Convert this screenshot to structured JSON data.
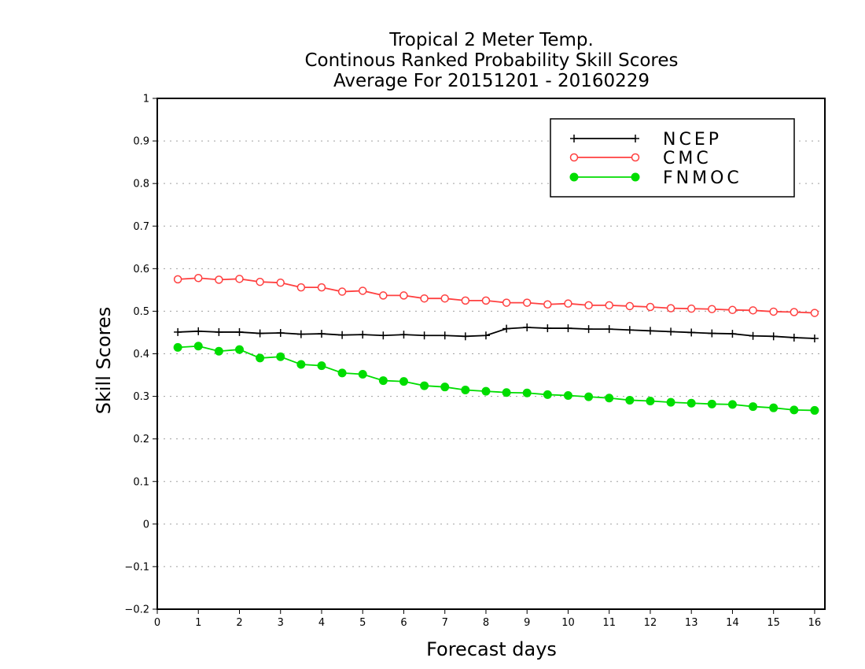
{
  "chart_data": {
    "type": "line",
    "title": [
      "Tropical 2 Meter Temp.",
      "Continous Ranked Probability Skill Scores",
      "Average For 20151201 - 20160229"
    ],
    "xlabel": "Forecast days",
    "ylabel": "Skill Scores",
    "xlim": [
      0,
      16.25
    ],
    "ylim": [
      -0.2,
      1
    ],
    "x_ticks": [
      0,
      1,
      2,
      3,
      4,
      5,
      6,
      7,
      8,
      9,
      10,
      11,
      12,
      13,
      14,
      15,
      16
    ],
    "y_ticks": [
      -0.2,
      -0.1,
      0,
      0.1,
      0.2,
      0.3,
      0.4,
      0.5,
      0.6,
      0.7,
      0.8,
      0.9,
      1
    ],
    "y_tick_labels": [
      "−0.2",
      "−0.1",
      "0",
      "0.1",
      "0.2",
      "0.3",
      "0.4",
      "0.5",
      "0.6",
      "0.7",
      "0.8",
      "0.9",
      "1"
    ],
    "grid": true,
    "legend_position": "top-right",
    "x": [
      0.5,
      1.0,
      1.5,
      2.0,
      2.5,
      3.0,
      3.5,
      4.0,
      4.5,
      5.0,
      5.5,
      6.0,
      6.5,
      7.0,
      7.5,
      8.0,
      8.5,
      9.0,
      9.5,
      10.0,
      10.5,
      11.0,
      11.5,
      12.0,
      12.5,
      13.0,
      13.5,
      14.0,
      14.5,
      15.0,
      15.5,
      16.0
    ],
    "series": [
      {
        "name": "NCEP",
        "color": "#000000",
        "marker": "plus",
        "values": [
          0.451,
          0.453,
          0.451,
          0.451,
          0.448,
          0.449,
          0.446,
          0.447,
          0.444,
          0.445,
          0.443,
          0.445,
          0.443,
          0.443,
          0.441,
          0.443,
          0.459,
          0.462,
          0.46,
          0.46,
          0.458,
          0.458,
          0.456,
          0.454,
          0.452,
          0.45,
          0.448,
          0.447,
          0.442,
          0.441,
          0.438,
          0.436
        ]
      },
      {
        "name": "CMC",
        "color": "#ff4040",
        "marker": "open-circle",
        "values": [
          0.575,
          0.578,
          0.574,
          0.576,
          0.569,
          0.567,
          0.556,
          0.556,
          0.546,
          0.548,
          0.537,
          0.537,
          0.53,
          0.53,
          0.525,
          0.525,
          0.52,
          0.52,
          0.516,
          0.518,
          0.514,
          0.514,
          0.512,
          0.51,
          0.507,
          0.506,
          0.505,
          0.503,
          0.502,
          0.499,
          0.498,
          0.496
        ]
      },
      {
        "name": "FNMOC",
        "color": "#00dd00",
        "marker": "filled-circle",
        "values": [
          0.415,
          0.418,
          0.406,
          0.41,
          0.39,
          0.393,
          0.375,
          0.372,
          0.355,
          0.352,
          0.337,
          0.335,
          0.325,
          0.322,
          0.315,
          0.312,
          0.309,
          0.308,
          0.304,
          0.302,
          0.299,
          0.296,
          0.291,
          0.289,
          0.286,
          0.284,
          0.282,
          0.281,
          0.276,
          0.273,
          0.268,
          0.267
        ]
      }
    ]
  }
}
